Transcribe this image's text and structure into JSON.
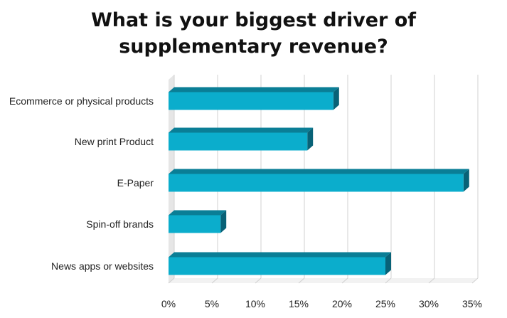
{
  "chart_data": {
    "type": "bar",
    "orientation": "horizontal",
    "title_lines": [
      "What is your biggest driver of",
      "supplementary revenue?"
    ],
    "categories": [
      "Ecommerce or physical products",
      "New print Product",
      "E-Paper",
      "Spin-off brands",
      "News apps or websites"
    ],
    "values": [
      19,
      16,
      34,
      6,
      25
    ],
    "xlim": [
      0,
      35
    ],
    "xticks": [
      "0%",
      "5%",
      "10%",
      "15%",
      "20%",
      "25%",
      "30%",
      "35%"
    ],
    "grid": true,
    "bar_color": "#0BADCC",
    "bar_top_color": "#0A7E96",
    "bar_side_color": "#086277",
    "style": "3d"
  }
}
